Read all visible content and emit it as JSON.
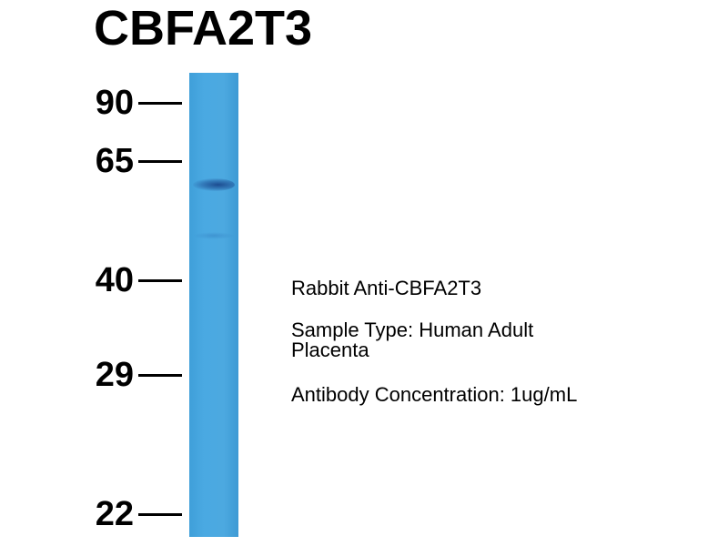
{
  "title": "CBFA2T3",
  "markers": [
    {
      "label": "90",
      "kda": 90
    },
    {
      "label": "65",
      "kda": 65
    },
    {
      "label": "40",
      "kda": 40
    },
    {
      "label": "29",
      "kda": 29
    },
    {
      "label": "22",
      "kda": 22
    }
  ],
  "lane_color": "#4aa9e2",
  "bands": [
    {
      "kda": 58,
      "intensity": "strong"
    },
    {
      "kda": 50,
      "intensity": "faint"
    }
  ],
  "info": {
    "antibody": "Rabbit Anti-CBFA2T3",
    "sample_line1": "Sample Type: Human Adult",
    "sample_line2": "Placenta",
    "concentration": "Antibody Concentration: 1ug/mL"
  }
}
